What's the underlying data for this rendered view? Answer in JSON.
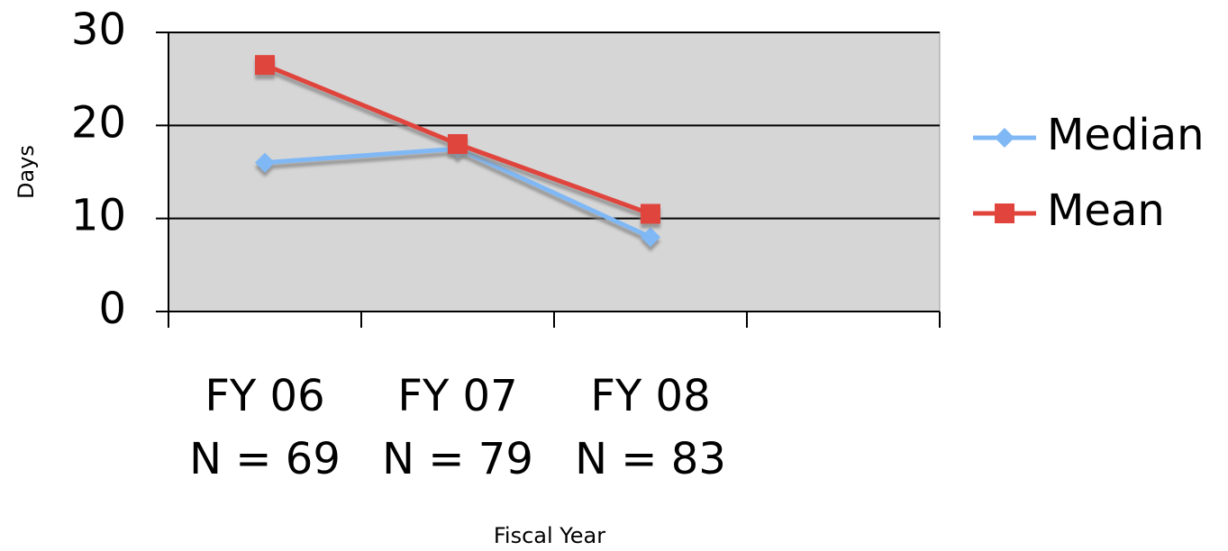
{
  "chart_data": {
    "type": "line",
    "categories": [
      "FY 06\nN = 69",
      "FY 07\nN = 79",
      "FY 08\nN = 83",
      null
    ],
    "series": [
      {
        "name": "Median",
        "color": "#7fb8f5",
        "marker": "diamond",
        "values": [
          16,
          17.5,
          8,
          null
        ]
      },
      {
        "name": "Mean",
        "color": "#e0443c",
        "marker": "square",
        "values": [
          26.5,
          18,
          10.5,
          null
        ]
      }
    ],
    "x_label": "Fiscal Year",
    "y_label": "Days",
    "ylim": [
      0,
      30
    ],
    "yticks": [
      0,
      10,
      20,
      30
    ],
    "grid": true,
    "legend": "right"
  }
}
